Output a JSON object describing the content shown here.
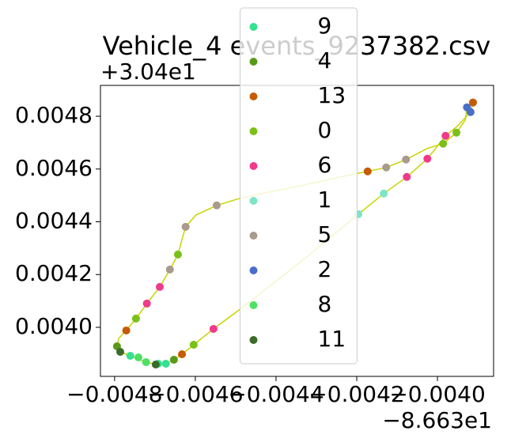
{
  "chart_data": {
    "type": "scatter",
    "title": "Vehicle_4 events_9237382.csv",
    "x_offset": "−8.663e1",
    "y_offset": "+3.04e1",
    "xlim": [
      -0.004835,
      -0.003861
    ],
    "ylim": [
      0.003814,
      0.004917
    ],
    "xticks": [
      {
        "value": -0.0048,
        "label": "−0.0048"
      },
      {
        "value": -0.0046,
        "label": "−0.0046"
      },
      {
        "value": -0.0044,
        "label": "−0.0044"
      },
      {
        "value": -0.0042,
        "label": "−0.0042"
      },
      {
        "value": -0.004,
        "label": "−0.0040"
      }
    ],
    "yticks": [
      {
        "value": 0.004,
        "label": "0.0040"
      },
      {
        "value": 0.0042,
        "label": "0.0042"
      },
      {
        "value": 0.0044,
        "label": "0.0044"
      },
      {
        "value": 0.0046,
        "label": "0.0046"
      },
      {
        "value": 0.0048,
        "label": "0.0048"
      }
    ],
    "legend": "upper center",
    "line": {
      "color": "#c8d400",
      "x": [
        -0.003912,
        -0.003918,
        -0.003951,
        -0.00398,
        -0.004025,
        -0.004076,
        -0.004133,
        -0.004196,
        -0.004331,
        -0.004486,
        -0.004555,
        -0.004604,
        -0.004633,
        -0.004653,
        -0.004673,
        -0.004698,
        -0.004722,
        -0.004747,
        -0.004771,
        -0.004786,
        -0.004794,
        -0.00479,
        -0.004771,
        -0.004747,
        -0.00472,
        -0.004688,
        -0.004663,
        -0.004643,
        -0.004633,
        -0.004624,
        -0.004598,
        -0.004547,
        -0.004496,
        -0.004427,
        -0.004365,
        -0.004241,
        -0.004173,
        -0.004127,
        -0.004078,
        -0.004025,
        -0.003986,
        -0.003953,
        -0.003931,
        -0.003927
      ],
      "y": [
        0.004852,
        0.004816,
        0.004762,
        0.004726,
        0.004639,
        0.00457,
        0.004507,
        0.004429,
        0.004258,
        0.004072,
        0.003994,
        0.003934,
        0.003898,
        0.003877,
        0.003862,
        0.003859,
        0.003868,
        0.003883,
        0.003898,
        0.003907,
        0.003928,
        0.003958,
        0.003988,
        0.004033,
        0.00409,
        0.004153,
        0.004219,
        0.004276,
        0.004333,
        0.004381,
        0.004426,
        0.004462,
        0.004486,
        0.00451,
        0.004528,
        0.00457,
        0.004591,
        0.004606,
        0.004636,
        0.004678,
        0.004696,
        0.004738,
        0.004786,
        0.004834
      ]
    },
    "series": [
      {
        "name": "9",
        "color": "#35e08f",
        "x": [
          -0.004761,
          -0.004692,
          -0.004673
        ],
        "y": [
          0.003892,
          0.003862,
          0.003862
        ]
      },
      {
        "name": "4",
        "color": "#5a9a1a",
        "x": [
          -0.004794,
          -0.004653
        ],
        "y": [
          0.003928,
          0.003877
        ]
      },
      {
        "name": "13",
        "color": "#c55a00",
        "x": [
          -0.004771,
          -0.004633,
          -0.004173,
          -0.003912
        ],
        "y": [
          0.003988,
          0.003898,
          0.004591,
          0.004852
        ]
      },
      {
        "name": "0",
        "color": "#7ac01a",
        "x": [
          -0.004643,
          -0.004604,
          -0.003986,
          -0.003953,
          -0.004747
        ],
        "y": [
          0.004276,
          0.003934,
          0.004696,
          0.004738,
          0.004033
        ]
      },
      {
        "name": "6",
        "color": "#f03a8a",
        "x": [
          -0.00472,
          -0.004688,
          -0.004555,
          -0.004076,
          -0.004025,
          -0.00398
        ],
        "y": [
          0.00409,
          0.004153,
          0.003994,
          0.00457,
          0.004639,
          0.004726
        ]
      },
      {
        "name": "1",
        "color": "#7fe3c8",
        "x": [
          -0.004133,
          -0.004196
        ],
        "y": [
          0.004507,
          0.004429
        ]
      },
      {
        "name": "5",
        "color": "#a89b8c",
        "x": [
          -0.004663,
          -0.004624,
          -0.004547,
          -0.004127,
          -0.004078
        ],
        "y": [
          0.004219,
          0.004381,
          0.004462,
          0.004606,
          0.004636
        ]
      },
      {
        "name": "2",
        "color": "#4a6ec8",
        "x": [
          -0.003927,
          -0.003918
        ],
        "y": [
          0.004834,
          0.004816
        ]
      },
      {
        "name": "8",
        "color": "#4ee064",
        "x": [
          -0.004741,
          -0.004722
        ],
        "y": [
          0.003886,
          0.003868
        ]
      },
      {
        "name": "11",
        "color": "#3b6a2a",
        "x": [
          -0.004786,
          -0.004698
        ],
        "y": [
          0.003907,
          0.003859
        ]
      }
    ]
  }
}
